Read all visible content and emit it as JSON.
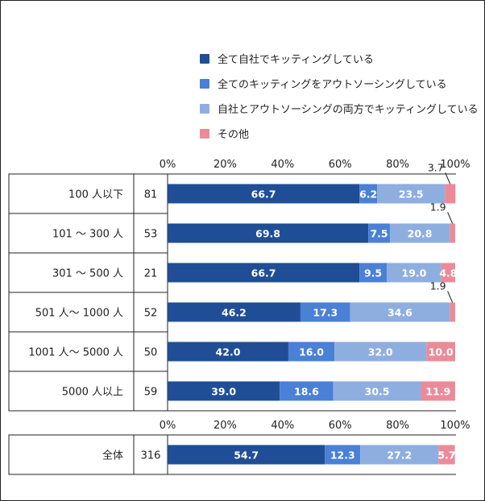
{
  "chart_data": {
    "type": "bar",
    "orientation": "horizontal",
    "stacked": true,
    "legend": [
      {
        "label": "全て自社でキッティングしている",
        "color": "#1f4e96"
      },
      {
        "label": "全てのキッティングをアウトソーシングしている",
        "color": "#4a80d6"
      },
      {
        "label": "自社とアウトソーシングの両方でキッティングしている",
        "color": "#8faee0"
      },
      {
        "label": "その他",
        "color": "#eb8b9a"
      }
    ],
    "x_ticks": [
      "0%",
      "20%",
      "40%",
      "60%",
      "80%",
      "100%"
    ],
    "xlim": [
      0,
      100
    ],
    "groups": [
      {
        "rows": [
          {
            "category": "100 人以下",
            "n": "81",
            "values": [
              66.7,
              6.2,
              23.5,
              3.7
            ]
          },
          {
            "category": "101 〜 300 人",
            "n": "53",
            "values": [
              69.8,
              7.5,
              20.8,
              1.9
            ]
          },
          {
            "category": "301 〜 500 人",
            "n": "21",
            "values": [
              66.7,
              9.5,
              19.0,
              4.8
            ]
          },
          {
            "category": "501 人〜 1000 人",
            "n": "52",
            "values": [
              46.2,
              17.3,
              34.6,
              1.9
            ]
          },
          {
            "category": "1001 人〜 5000 人",
            "n": "50",
            "values": [
              42.0,
              16.0,
              32.0,
              10.0
            ]
          },
          {
            "category": "5000 人以上",
            "n": "59",
            "values": [
              39.0,
              18.6,
              30.5,
              11.9
            ]
          }
        ]
      },
      {
        "rows": [
          {
            "category": "全体",
            "n": "316",
            "values": [
              54.7,
              12.3,
              27.2,
              5.7
            ]
          }
        ]
      }
    ],
    "value_labels": [
      [
        "66.7",
        "6.2",
        "23.5",
        "3.7"
      ],
      [
        "69.8",
        "7.5",
        "20.8",
        "1.9"
      ],
      [
        "66.7",
        "9.5",
        "19.0",
        "4.8"
      ],
      [
        "46.2",
        "17.3",
        "34.6",
        "1.9"
      ],
      [
        "42.0",
        "16.0",
        "32.0",
        "10.0"
      ],
      [
        "39.0",
        "18.6",
        "30.5",
        "11.9"
      ],
      [
        "54.7",
        "12.3",
        "27.2",
        "5.7"
      ]
    ],
    "outside_labels": [
      false,
      false,
      false,
      false,
      false,
      false,
      false
    ]
  }
}
